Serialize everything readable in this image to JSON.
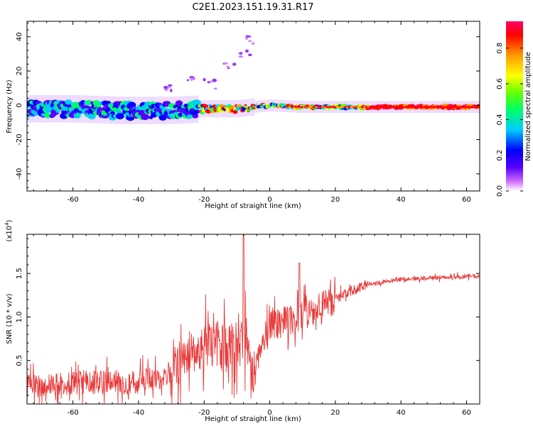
{
  "title": "C2E1.2023.151.19.31.R17",
  "colors": {
    "snr_line": "#e83a3a",
    "axis": "#000000",
    "background": "#ffffff"
  },
  "chart_data": [
    {
      "type": "heatmap",
      "xlabel": "Height of straight line (km)",
      "ylabel": "Frequency (Hz)",
      "xlim": [
        -74,
        64
      ],
      "ylim": [
        -50,
        49
      ],
      "x_ticks": [
        -60,
        -40,
        -20,
        0,
        20,
        40,
        60
      ],
      "y_ticks": [
        -40,
        -20,
        0,
        20,
        40
      ],
      "colorbar": {
        "label": "Normalized spectral amplitude",
        "range": [
          0,
          0.95
        ],
        "ticks": [
          0.0,
          0.2,
          0.4,
          0.6,
          0.8
        ],
        "colormap": [
          "#ffffff",
          "#cc66ff",
          "#5500ff",
          "#0000ff",
          "#00ccff",
          "#00ff66",
          "#66ff00",
          "#ffff00",
          "#ff9900",
          "#ff0000",
          "#ff0066"
        ]
      },
      "ridge": [
        {
          "x": -74,
          "y": -2
        },
        {
          "x": -60,
          "y": -2
        },
        {
          "x": -45,
          "y": -3
        },
        {
          "x": -30,
          "y": -3
        },
        {
          "x": -20,
          "y": -2
        },
        {
          "x": -10,
          "y": -2
        },
        {
          "x": 0,
          "y": 0
        },
        {
          "x": 10,
          "y": -1
        },
        {
          "x": 20,
          "y": -1
        },
        {
          "x": 30,
          "y": -1
        },
        {
          "x": 40,
          "y": -1
        },
        {
          "x": 50,
          "y": -1
        },
        {
          "x": 64,
          "y": -1
        }
      ],
      "scattered_arc": [
        {
          "x": -30,
          "y": 10
        },
        {
          "x": -25,
          "y": 16
        },
        {
          "x": -18,
          "y": 12
        },
        {
          "x": -12,
          "y": 22
        },
        {
          "x": -8,
          "y": 30
        },
        {
          "x": -6,
          "y": 38
        }
      ]
    },
    {
      "type": "line",
      "xlabel": "Height of straight line (km)",
      "ylabel": "SNR (10 * v/v)",
      "y_multiplier": "(x10^4)",
      "xlim": [
        -74,
        64
      ],
      "ylim": [
        0,
        1.95
      ],
      "x_ticks": [
        -60,
        -40,
        -20,
        0,
        20,
        40,
        60
      ],
      "y_ticks": [
        0.5,
        1.0,
        1.5
      ],
      "series": [
        {
          "trend": [
            {
              "x": -74,
              "y": 0.2
            },
            {
              "x": -60,
              "y": 0.25
            },
            {
              "x": -50,
              "y": 0.25
            },
            {
              "x": -40,
              "y": 0.25
            },
            {
              "x": -30,
              "y": 0.35
            },
            {
              "x": -25,
              "y": 0.6
            },
            {
              "x": -20,
              "y": 0.65
            },
            {
              "x": -15,
              "y": 0.7
            },
            {
              "x": -10,
              "y": 0.65
            },
            {
              "x": -7,
              "y": 0.75
            },
            {
              "x": -5,
              "y": 0.3
            },
            {
              "x": -3,
              "y": 0.65
            },
            {
              "x": 0,
              "y": 0.9
            },
            {
              "x": 5,
              "y": 0.95
            },
            {
              "x": 10,
              "y": 1.0
            },
            {
              "x": 15,
              "y": 1.1
            },
            {
              "x": 20,
              "y": 1.2
            },
            {
              "x": 25,
              "y": 1.3
            },
            {
              "x": 30,
              "y": 1.38
            },
            {
              "x": 40,
              "y": 1.43
            },
            {
              "x": 50,
              "y": 1.45
            },
            {
              "x": 64,
              "y": 1.47
            }
          ]
        }
      ]
    }
  ]
}
